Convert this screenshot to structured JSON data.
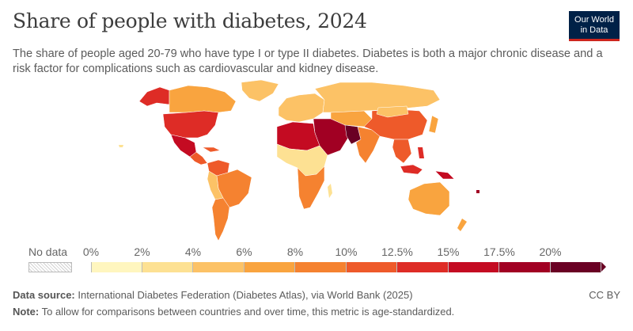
{
  "title": "Share of people with diabetes, 2024",
  "logo": {
    "line1": "Our World",
    "line2": "in Data"
  },
  "subtitle": "The share of people aged 20-79 who have type I or type II diabetes. Diabetes is both a major chronic disease and a risk factor for complications such as cardiovascular and kidney disease.",
  "legend": {
    "no_data_label": "No data",
    "ticks": [
      "0%",
      "2%",
      "4%",
      "6%",
      "8%",
      "10%",
      "12.5%",
      "15%",
      "17.5%",
      "20%"
    ],
    "colors": [
      "#fff6bf",
      "#fde193",
      "#fcc266",
      "#f9a43f",
      "#f58230",
      "#ee5a2a",
      "#de2c26",
      "#c40b22",
      "#a10023",
      "#6a0024"
    ]
  },
  "footer": {
    "source_label": "Data source:",
    "source_text": "International Diabetes Federation (Diabetes Atlas), via World Bank (2025)",
    "note_label": "Note:",
    "note_text": "To allow for comparisons between countries and over time, this metric is age-standardized.",
    "license": "CC BY"
  }
}
